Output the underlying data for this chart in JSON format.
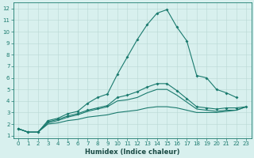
{
  "xlabel": "Humidex (Indice chaleur)",
  "x_values": [
    0,
    1,
    2,
    3,
    4,
    5,
    6,
    7,
    8,
    9,
    10,
    11,
    12,
    13,
    14,
    15,
    16,
    17,
    18,
    19,
    20,
    21,
    22,
    23
  ],
  "line_max": [
    1.6,
    1.3,
    1.3,
    2.3,
    2.5,
    2.9,
    3.1,
    3.8,
    4.3,
    4.6,
    6.3,
    7.8,
    9.3,
    10.6,
    11.6,
    11.9,
    10.4,
    9.2,
    6.2,
    6.0,
    5.0,
    4.7,
    4.3,
    null
  ],
  "line_mid1": [
    1.6,
    1.3,
    1.3,
    2.2,
    2.4,
    2.7,
    2.9,
    3.2,
    3.4,
    3.6,
    4.3,
    4.5,
    4.8,
    5.2,
    5.5,
    5.5,
    4.9,
    4.2,
    3.5,
    3.4,
    3.3,
    3.4,
    3.4,
    3.5
  ],
  "line_mid2": [
    1.6,
    1.3,
    1.3,
    2.1,
    2.3,
    2.6,
    2.8,
    3.1,
    3.3,
    3.5,
    4.0,
    4.1,
    4.3,
    4.7,
    5.0,
    5.0,
    4.5,
    3.9,
    3.3,
    3.2,
    3.1,
    3.2,
    3.2,
    3.5
  ],
  "line_min": [
    1.6,
    1.3,
    1.3,
    2.0,
    2.1,
    2.3,
    2.4,
    2.6,
    2.7,
    2.8,
    3.0,
    3.1,
    3.2,
    3.4,
    3.5,
    3.5,
    3.4,
    3.2,
    3.0,
    3.0,
    3.0,
    3.1,
    3.2,
    3.5
  ],
  "line_color": "#1a7a6e",
  "bg_color": "#d8f0ee",
  "grid_color": "#b8d8d4",
  "xlim": [
    0,
    23
  ],
  "ylim": [
    0.8,
    12.5
  ],
  "yticks": [
    1,
    2,
    3,
    4,
    5,
    6,
    7,
    8,
    9,
    10,
    11,
    12
  ],
  "xticks": [
    0,
    1,
    2,
    3,
    4,
    5,
    6,
    7,
    8,
    9,
    10,
    11,
    12,
    13,
    14,
    15,
    16,
    17,
    18,
    19,
    20,
    21,
    22,
    23
  ],
  "marker": "D",
  "markersize": 2.0,
  "linewidth": 0.8,
  "tick_fontsize": 5.0,
  "xlabel_fontsize": 6.0
}
